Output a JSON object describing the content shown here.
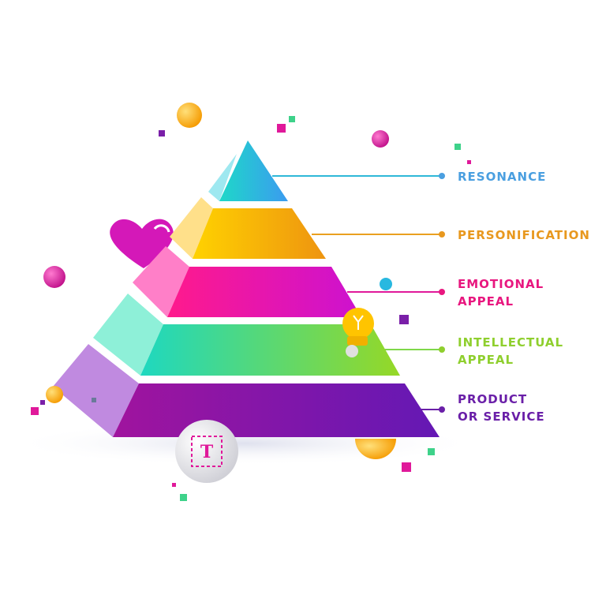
{
  "pyramid": {
    "levels": [
      {
        "lines": [
          "RESONANCE"
        ]
      },
      {
        "lines": [
          "PERSONIFICATION"
        ]
      },
      {
        "lines": [
          "EMOTIONAL",
          "APPEAL"
        ]
      },
      {
        "lines": [
          "INTELLECTUAL",
          "APPEAL"
        ]
      },
      {
        "lines": [
          "PRODUCT",
          "OR SERVICE"
        ]
      }
    ]
  },
  "badge": {
    "letter": "T"
  }
}
